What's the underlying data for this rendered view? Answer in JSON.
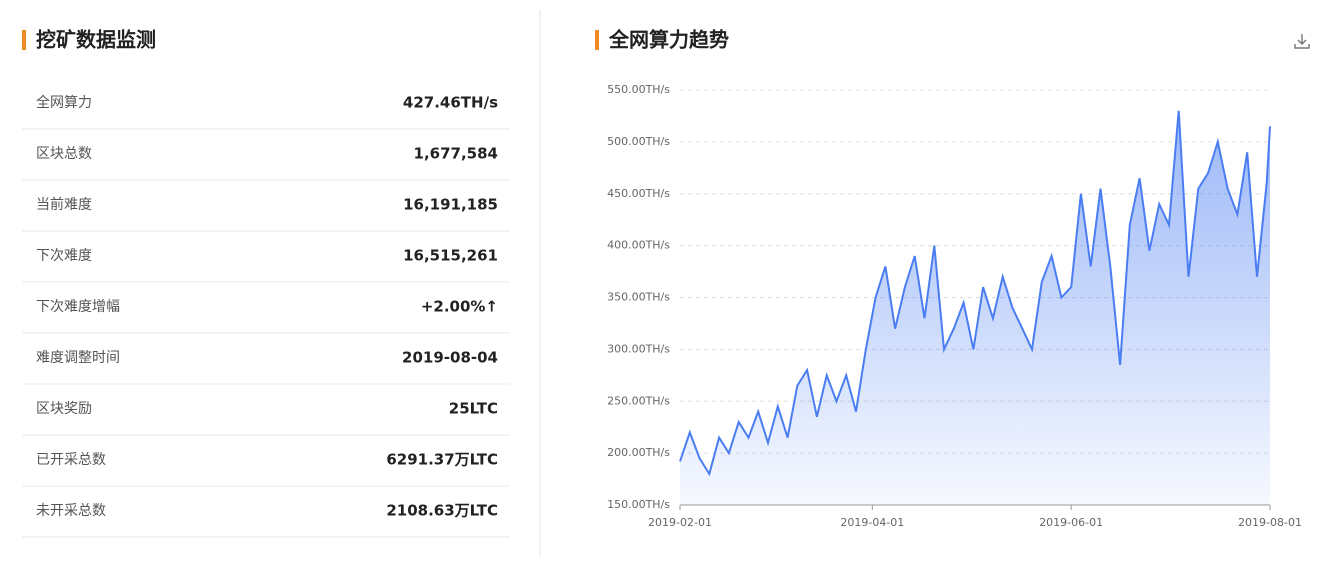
{
  "mining": {
    "title": "挖矿数据监测",
    "rows": [
      {
        "label": "全网算力",
        "value": "427.46TH/s"
      },
      {
        "label": "区块总数",
        "value": "1,677,584"
      },
      {
        "label": "当前难度",
        "value": "16,191,185"
      },
      {
        "label": "下次难度",
        "value": "16,515,261"
      },
      {
        "label": "下次难度增幅",
        "value": "+2.00%↑",
        "color": "#1e9b4b"
      },
      {
        "label": "难度调整时间",
        "value": "2019-08-04"
      },
      {
        "label": "区块奖励",
        "value": "25LTC"
      },
      {
        "label": "已开采总数",
        "value": "6291.37万LTC"
      },
      {
        "label": "未开采总数",
        "value": "2108.63万LTC"
      }
    ]
  },
  "chart_data": {
    "type": "line",
    "title": "全网算力趋势",
    "color": "#4a7df2",
    "grid": true,
    "x": [
      "2019-02-01",
      "2019-02-04",
      "2019-02-07",
      "2019-02-10",
      "2019-02-13",
      "2019-02-16",
      "2019-02-19",
      "2019-02-22",
      "2019-02-25",
      "2019-02-28",
      "2019-03-03",
      "2019-03-06",
      "2019-03-09",
      "2019-03-12",
      "2019-03-15",
      "2019-03-18",
      "2019-03-21",
      "2019-03-24",
      "2019-03-27",
      "2019-03-30",
      "2019-04-02",
      "2019-04-05",
      "2019-04-08",
      "2019-04-11",
      "2019-04-14",
      "2019-04-17",
      "2019-04-20",
      "2019-04-23",
      "2019-04-26",
      "2019-04-29",
      "2019-05-02",
      "2019-05-05",
      "2019-05-08",
      "2019-05-11",
      "2019-05-14",
      "2019-05-17",
      "2019-05-20",
      "2019-05-23",
      "2019-05-26",
      "2019-05-29",
      "2019-06-01",
      "2019-06-04",
      "2019-06-07",
      "2019-06-10",
      "2019-06-13",
      "2019-06-16",
      "2019-06-19",
      "2019-06-22",
      "2019-06-25",
      "2019-06-28",
      "2019-07-01",
      "2019-07-04",
      "2019-07-07",
      "2019-07-10",
      "2019-07-13",
      "2019-07-16",
      "2019-07-19",
      "2019-07-22",
      "2019-07-25",
      "2019-07-28",
      "2019-07-31",
      "2019-08-01"
    ],
    "values": [
      192,
      220,
      195,
      180,
      215,
      200,
      230,
      215,
      240,
      210,
      245,
      215,
      265,
      280,
      235,
      275,
      250,
      275,
      240,
      300,
      350,
      380,
      320,
      360,
      390,
      330,
      400,
      300,
      320,
      345,
      300,
      360,
      330,
      370,
      340,
      320,
      300,
      365,
      390,
      350,
      360,
      450,
      380,
      455,
      380,
      285,
      420,
      465,
      395,
      440,
      420,
      530,
      370,
      455,
      470,
      500,
      455,
      430,
      490,
      370,
      460,
      515
    ],
    "xlim": [
      "2019-02-01",
      "2019-08-01"
    ],
    "xticks": [
      "2019-02-01",
      "2019-04-01",
      "2019-06-01",
      "2019-08-01"
    ],
    "ylim": [
      150,
      550
    ],
    "yticks": [
      {
        "value": 150,
        "label": "150.00TH/s"
      },
      {
        "value": 200,
        "label": "200.00TH/s"
      },
      {
        "value": 250,
        "label": "250.00TH/s"
      },
      {
        "value": 300,
        "label": "300.00TH/s"
      },
      {
        "value": 350,
        "label": "350.00TH/s"
      },
      {
        "value": 400,
        "label": "400.00TH/s"
      },
      {
        "value": 450,
        "label": "450.00TH/s"
      },
      {
        "value": 500,
        "label": "500.00TH/s"
      },
      {
        "value": 550,
        "label": "550.00TH/s"
      }
    ]
  }
}
